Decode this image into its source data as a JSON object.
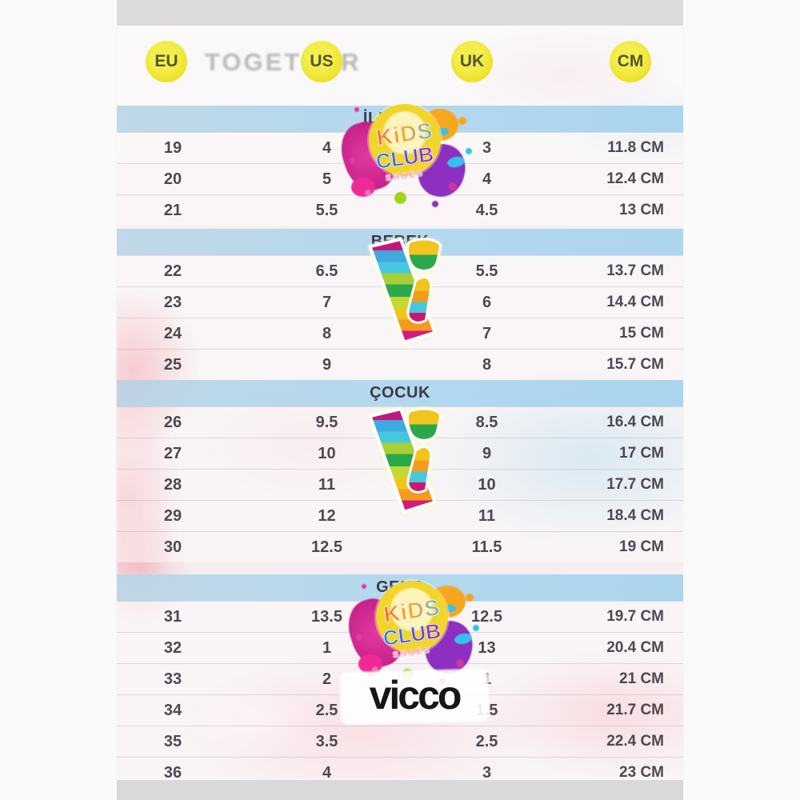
{
  "chart_data": {
    "type": "table",
    "columns": [
      "EU",
      "US",
      "UK",
      "CM"
    ],
    "sections": [
      {
        "title": "İLK ADIM",
        "rows": [
          [
            "19",
            "4",
            "3",
            "11.8 CM"
          ],
          [
            "20",
            "5",
            "4",
            "12.4 CM"
          ],
          [
            "21",
            "5.5",
            "4.5",
            "13 CM"
          ]
        ]
      },
      {
        "title": "BEBEK",
        "rows": [
          [
            "22",
            "6.5",
            "5.5",
            "13.7 CM"
          ],
          [
            "23",
            "7",
            "6",
            "14.4 CM"
          ],
          [
            "24",
            "8",
            "7",
            "15 CM"
          ],
          [
            "25",
            "9",
            "8",
            "15.7 CM"
          ]
        ]
      },
      {
        "title": "ÇOCUK",
        "rows": [
          [
            "26",
            "9.5",
            "8.5",
            "16.4 CM"
          ],
          [
            "27",
            "10",
            "9",
            "17 CM"
          ],
          [
            "28",
            "11",
            "10",
            "17.7 CM"
          ],
          [
            "29",
            "12",
            "11",
            "18.4 CM"
          ],
          [
            "30",
            "12.5",
            "11.5",
            "19 CM"
          ]
        ]
      },
      {
        "title": "GENÇ",
        "rows": [
          [
            "31",
            "13.5",
            "12.5",
            "19.7 CM"
          ],
          [
            "32",
            "1",
            "13",
            "20.4 CM"
          ],
          [
            "33",
            "2",
            "1",
            "21 CM"
          ],
          [
            "34",
            "2.5",
            "1.5",
            "21.7 CM"
          ],
          [
            "35",
            "3.5",
            "2.5",
            "22.4 CM"
          ],
          [
            "36",
            "4",
            "3",
            "23 CM"
          ]
        ]
      }
    ],
    "legend_position": "none",
    "grid": "faint horizontal row separators"
  },
  "logos": {
    "kids_club": {
      "word1": "KiDS",
      "word2": "CLUB",
      "word3": "SHOES"
    },
    "vicco_wordmark": "vicco"
  },
  "background": {
    "photo_text": "TOGETHER"
  },
  "colors": {
    "header_circle": "#ece32b",
    "section_band": "#aed6ef",
    "table_text": "#4d4852",
    "logo_magenta": "#d5359b",
    "logo_purple": "#8a2bbf",
    "logo_orange": "#f6a71f",
    "logo_cyan": "#35c1ee",
    "logo_green": "#9ed41a",
    "vicco_black": "#161616"
  }
}
